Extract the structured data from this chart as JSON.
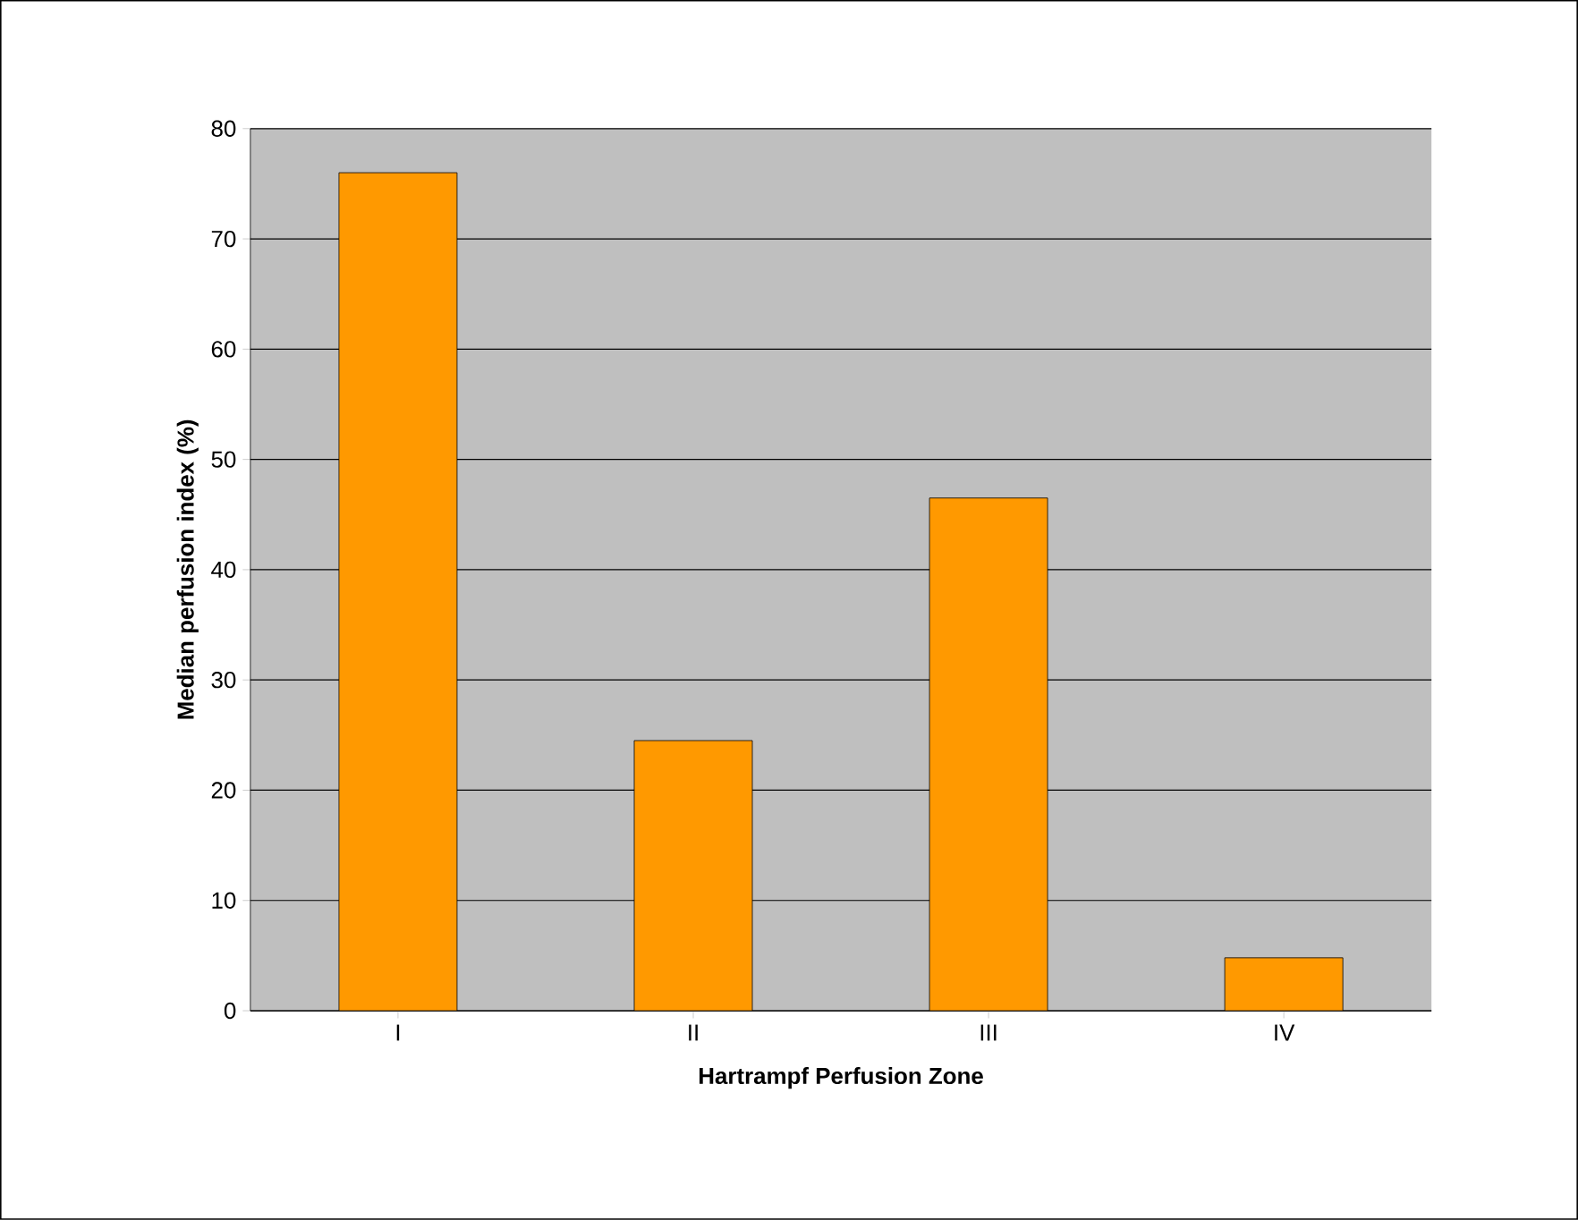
{
  "chart_data": {
    "type": "bar",
    "xlabel": "Hartrampf Perfusion Zone",
    "ylabel": "Median perfusion index (%)",
    "categories": [
      "I",
      "II",
      "III",
      "IV"
    ],
    "values": [
      76,
      24.5,
      46.5,
      4.8
    ],
    "color": "#ff9900",
    "ylim": [
      0,
      80
    ],
    "yticks": [
      0,
      10,
      20,
      30,
      40,
      50,
      60,
      70,
      80
    ],
    "grid": "y"
  }
}
